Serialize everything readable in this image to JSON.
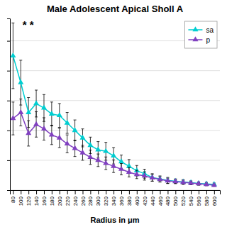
{
  "chart_data": {
    "type": "line",
    "title": "Male Adolescent Apical Sholl A",
    "xlabel": "Radius in μm",
    "annotations": [
      "* *"
    ],
    "x": [
      80,
      100,
      120,
      140,
      160,
      180,
      200,
      220,
      240,
      260,
      280,
      300,
      320,
      340,
      360,
      380,
      400,
      420,
      440,
      460,
      480,
      500,
      520,
      540,
      560,
      580,
      600
    ],
    "xlim": [
      72,
      615
    ],
    "xticks": [
      80,
      100,
      120,
      140,
      160,
      180,
      200,
      220,
      240,
      260,
      280,
      300,
      320,
      340,
      360,
      380,
      400,
      420,
      440,
      460,
      480,
      500,
      520,
      540,
      560,
      580,
      600
    ],
    "ylim": [
      0,
      11.5
    ],
    "yticks": [
      0,
      2,
      4,
      6,
      8,
      10
    ],
    "grid": true,
    "legend": "upper right",
    "tick_labels": "x",
    "series": [
      {
        "name": "sa",
        "color": "#00CED1",
        "marker": "triangle",
        "values": [
          9.0,
          7.2,
          5.2,
          5.8,
          5.5,
          5.1,
          5.0,
          4.5,
          4.0,
          3.5,
          3.0,
          2.7,
          2.6,
          2.3,
          1.9,
          1.6,
          1.3,
          1.1,
          0.85,
          0.75,
          0.65,
          0.6,
          0.55,
          0.5,
          0.45,
          0.42,
          0.38
        ],
        "errors": [
          2.2,
          1.5,
          1.0,
          0.9,
          0.9,
          0.8,
          0.8,
          0.7,
          0.7,
          0.6,
          0.55,
          0.55,
          0.6,
          0.55,
          0.45,
          0.45,
          0.35,
          0.3,
          0.25,
          0.2,
          0.2,
          0.15,
          0.15,
          0.12,
          0.1,
          0.1,
          0.1
        ]
      },
      {
        "name": "p",
        "color": "#8040C0",
        "marker": "triangle",
        "values": [
          4.8,
          5.2,
          3.8,
          4.4,
          4.1,
          3.7,
          3.5,
          3.1,
          2.8,
          2.5,
          2.2,
          2.0,
          1.8,
          1.6,
          1.4,
          1.2,
          1.05,
          0.95,
          0.82,
          0.72,
          0.62,
          0.57,
          0.52,
          0.47,
          0.43,
          0.38,
          0.33
        ],
        "errors": [
          1.1,
          0.9,
          0.85,
          0.85,
          0.75,
          0.65,
          0.65,
          0.6,
          0.55,
          0.5,
          0.48,
          0.42,
          0.42,
          0.42,
          0.38,
          0.32,
          0.28,
          0.28,
          0.22,
          0.18,
          0.18,
          0.14,
          0.14,
          0.11,
          0.1,
          0.09,
          0.08
        ]
      }
    ]
  }
}
